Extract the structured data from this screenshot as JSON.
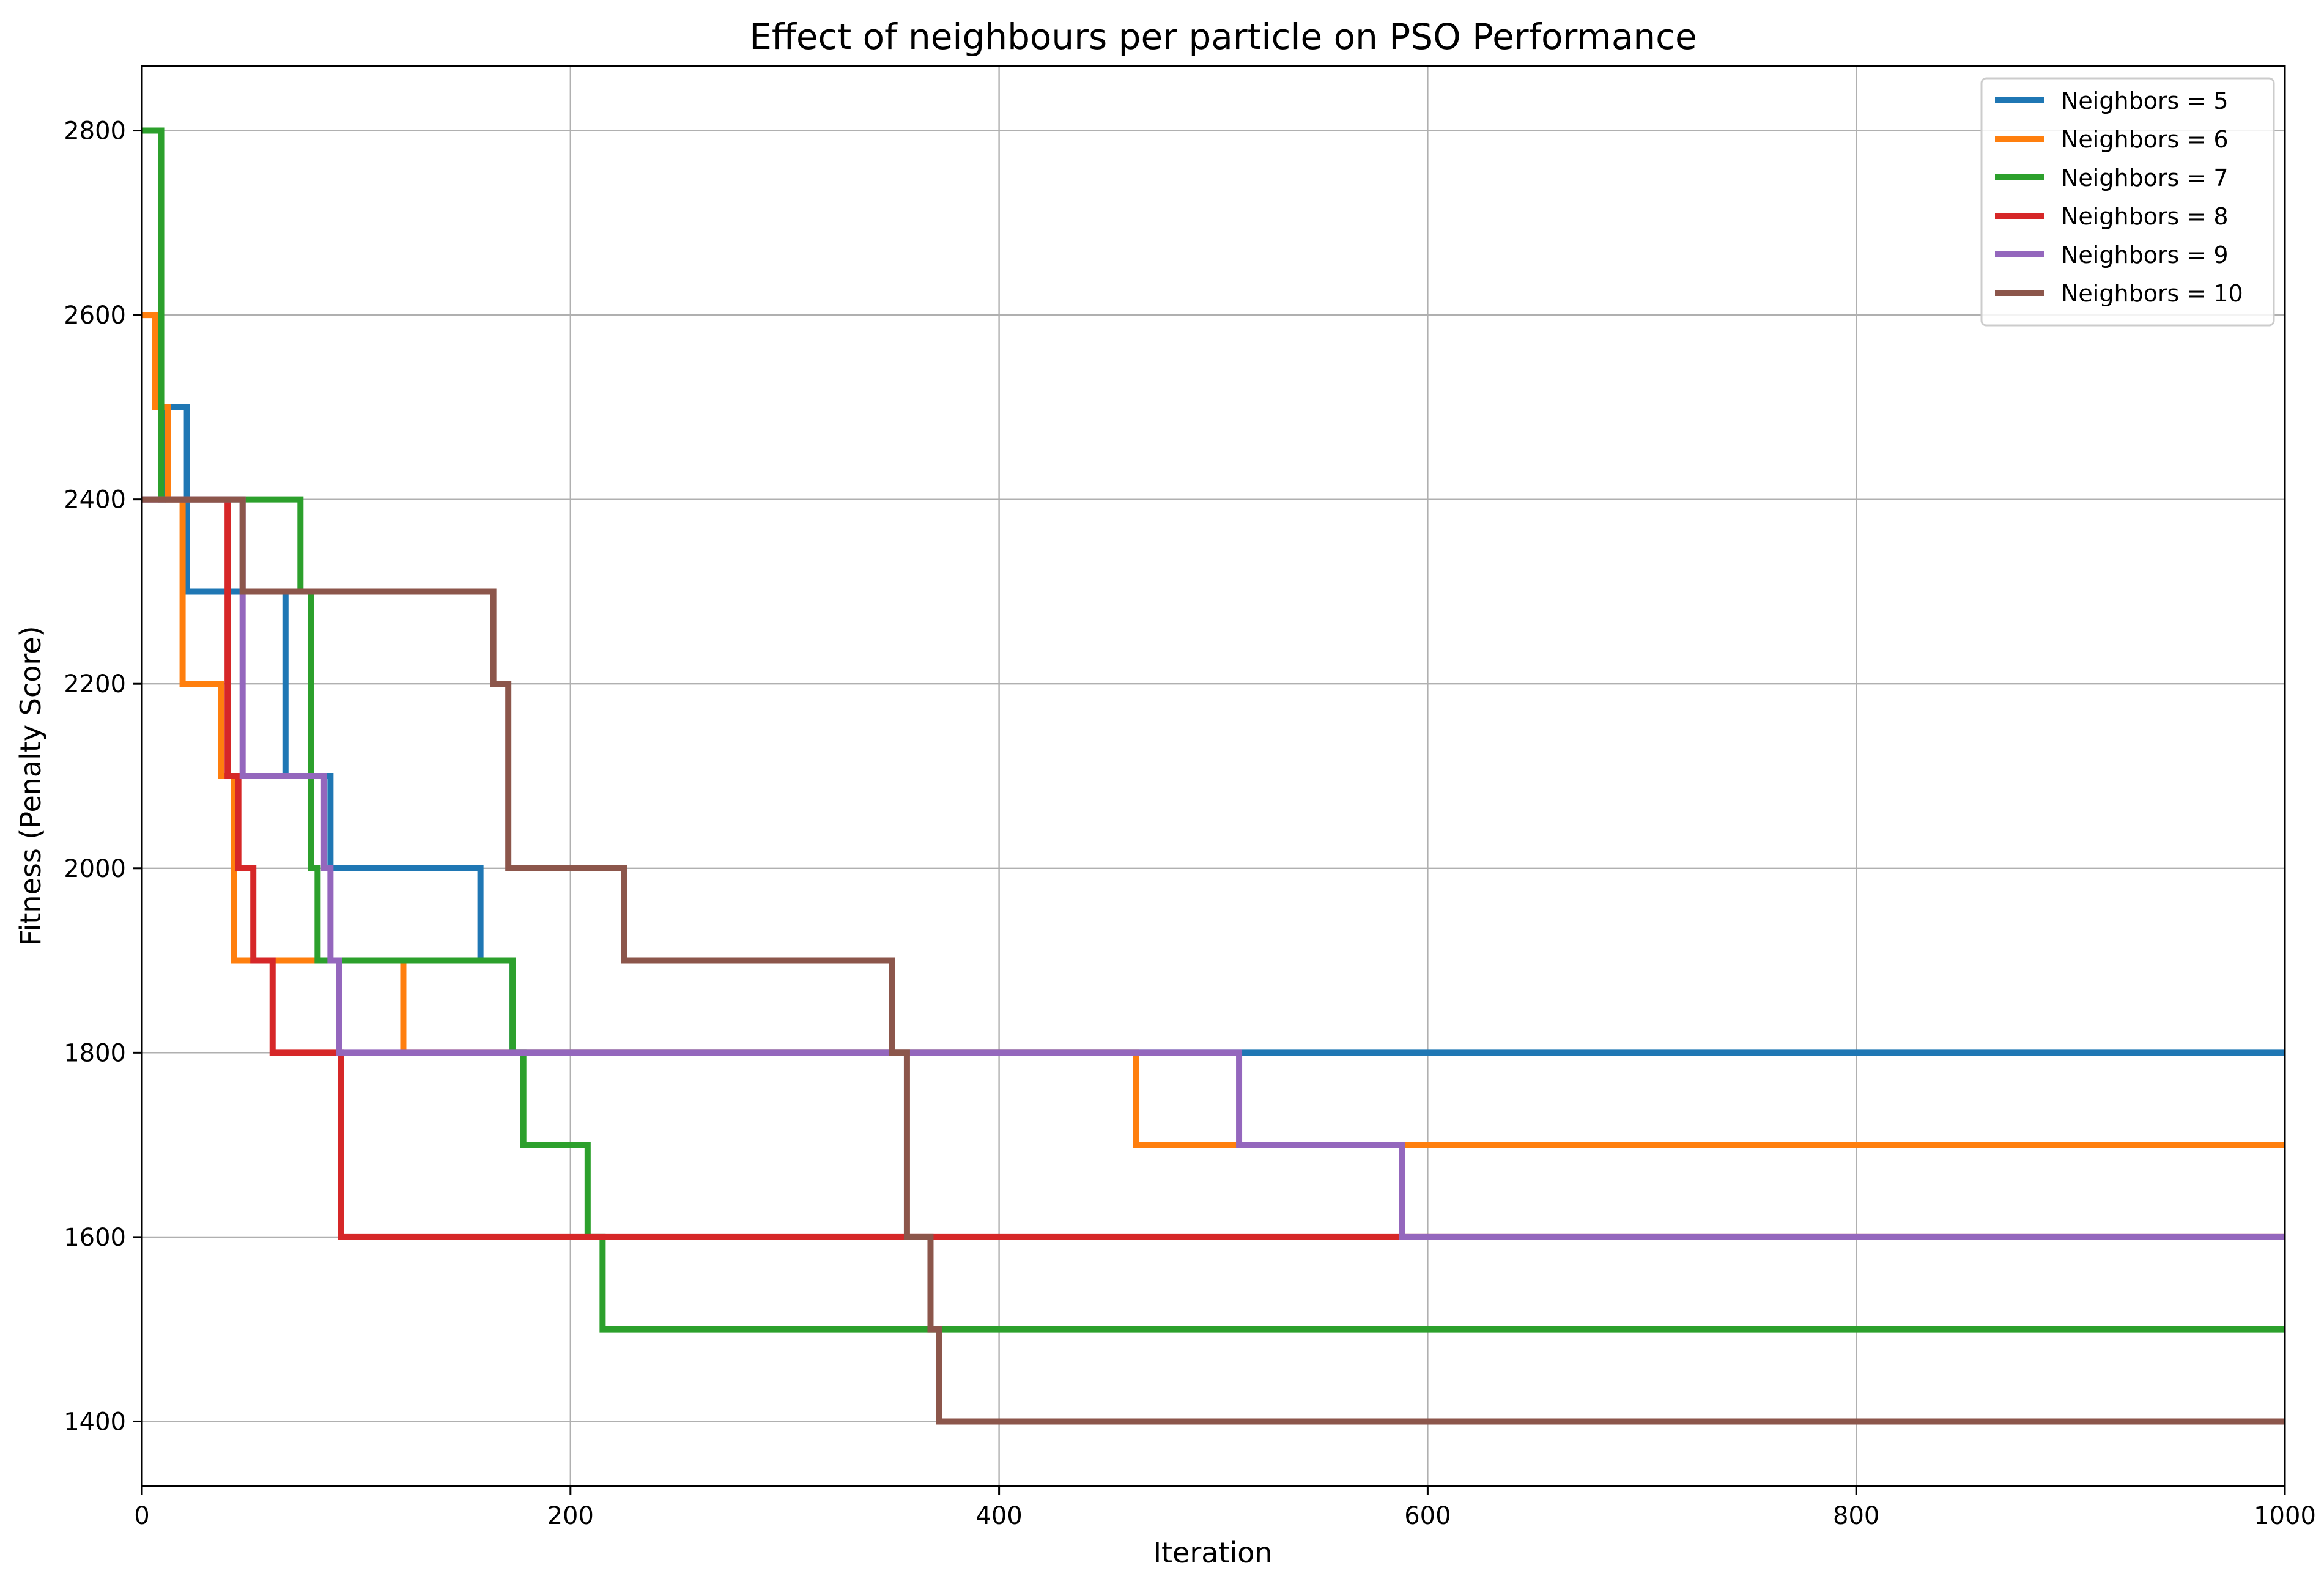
{
  "chart_data": {
    "type": "line",
    "title": "Effect of neighbours per particle on PSO Performance",
    "xlabel": "Iteration",
    "ylabel": "Fitness (Penalty Score)",
    "xlim": [
      0,
      1000
    ],
    "ylim": [
      1330,
      2870
    ],
    "x_ticks": [
      0,
      200,
      400,
      600,
      800,
      1000
    ],
    "y_ticks": [
      1400,
      1600,
      1800,
      2000,
      2200,
      2400,
      2600,
      2800
    ],
    "grid": true,
    "legend_position": "top-right",
    "step": "post",
    "series": [
      {
        "name": "Neighbors = 5",
        "color": "#1f77b4",
        "points": [
          [
            0,
            2400
          ],
          [
            10,
            2500
          ],
          [
            21,
            2300
          ],
          [
            67,
            2100
          ],
          [
            88,
            2000
          ],
          [
            158,
            1900
          ],
          [
            173,
            1800
          ],
          [
            1000,
            1800
          ]
        ]
      },
      {
        "name": "Neighbors = 6",
        "color": "#ff7f0e",
        "points": [
          [
            0,
            2600
          ],
          [
            6,
            2500
          ],
          [
            12,
            2400
          ],
          [
            19,
            2200
          ],
          [
            37,
            2100
          ],
          [
            43,
            1900
          ],
          [
            122,
            1800
          ],
          [
            464,
            1700
          ],
          [
            1000,
            1700
          ]
        ]
      },
      {
        "name": "Neighbors = 7",
        "color": "#2ca02c",
        "points": [
          [
            0,
            2800
          ],
          [
            9,
            2400
          ],
          [
            74,
            2300
          ],
          [
            79,
            2000
          ],
          [
            82,
            1900
          ],
          [
            173,
            1800
          ],
          [
            178,
            1700
          ],
          [
            208,
            1600
          ],
          [
            215,
            1500
          ],
          [
            1000,
            1500
          ]
        ]
      },
      {
        "name": "Neighbors = 8",
        "color": "#d62728",
        "points": [
          [
            0,
            2400
          ],
          [
            40,
            2100
          ],
          [
            45,
            2000
          ],
          [
            52,
            1900
          ],
          [
            61,
            1800
          ],
          [
            93,
            1600
          ],
          [
            1000,
            1600
          ]
        ]
      },
      {
        "name": "Neighbors = 9",
        "color": "#9467bd",
        "points": [
          [
            0,
            2400
          ],
          [
            47,
            2100
          ],
          [
            85,
            2000
          ],
          [
            88,
            1900
          ],
          [
            92,
            1800
          ],
          [
            512,
            1700
          ],
          [
            588,
            1600
          ],
          [
            1000,
            1600
          ]
        ]
      },
      {
        "name": "Neighbors = 10",
        "color": "#8c564b",
        "points": [
          [
            0,
            2400
          ],
          [
            47,
            2300
          ],
          [
            164,
            2200
          ],
          [
            171,
            2000
          ],
          [
            225,
            1900
          ],
          [
            350,
            1800
          ],
          [
            357,
            1600
          ],
          [
            368,
            1500
          ],
          [
            372,
            1400
          ],
          [
            1000,
            1400
          ]
        ]
      }
    ]
  }
}
